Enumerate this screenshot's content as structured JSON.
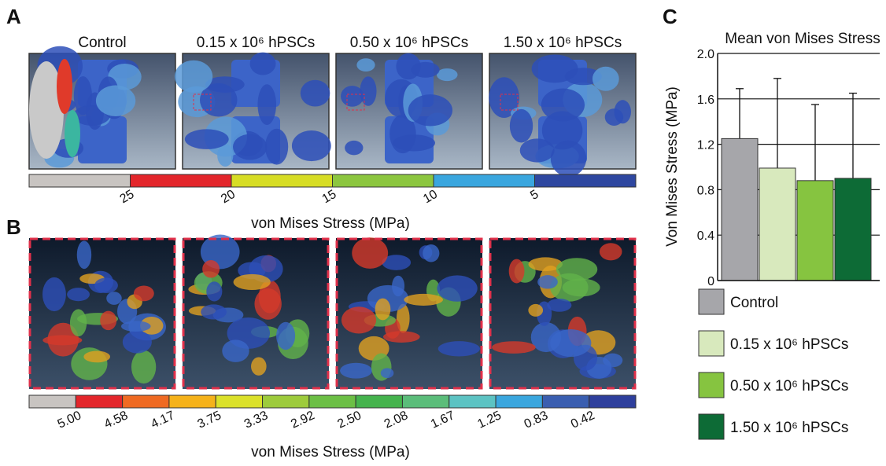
{
  "panels": {
    "a": {
      "label": "A",
      "titles": [
        "Control",
        "0.15 x 10⁶ hPSCs",
        "0.50 x 10⁶ hPSCs",
        "1.50 x 10⁶ hPSCs"
      ],
      "scale_ticks": [
        "25",
        "20",
        "15",
        "10",
        "5"
      ],
      "scale_title": "von Mises Stress (MPa)"
    },
    "b": {
      "label": "B",
      "scale_ticks": [
        "5.00",
        "4.58",
        "4.17",
        "3.75",
        "3.33",
        "2.92",
        "2.50",
        "2.08",
        "1.67",
        "1.25",
        "0.83",
        "0.42"
      ],
      "scale_title": "von Mises Stress (MPa)"
    },
    "c": {
      "label": "C"
    }
  },
  "chart_data": {
    "type": "bar",
    "title": "Mean von Mises Stress",
    "y_label": "Von Mises Stress (MPa)",
    "series": [
      {
        "name": "Control",
        "color": "#a6a6aa",
        "values": [
          1.25
        ],
        "errors": [
          0.44
        ]
      },
      {
        "name": "0.15 x 10⁶ hPSCs",
        "color": "#d8e9bd",
        "values": [
          0.99
        ],
        "errors": [
          0.79
        ]
      },
      {
        "name": "0.50 x 10⁶ hPSCs",
        "color": "#86c440",
        "values": [
          0.88
        ],
        "errors": [
          0.67
        ]
      },
      {
        "name": "1.50 x 10⁶ hPSCs",
        "color": "#0d6b36",
        "values": [
          0.9
        ],
        "errors": [
          0.75
        ]
      }
    ],
    "ylim": [
      0,
      2
    ],
    "yticks": [
      0,
      0.4,
      0.8,
      1.2,
      1.6,
      {
        "value": 2,
        "label": "2.0"
      }
    ],
    "grid": true
  }
}
